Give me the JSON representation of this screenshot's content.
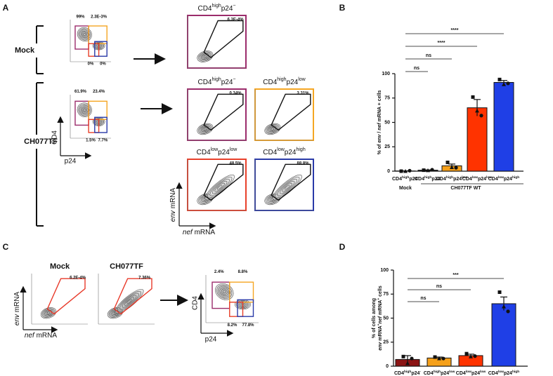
{
  "panel_labels": [
    "A",
    "B",
    "C",
    "D"
  ],
  "panel_a": {
    "rows": [
      "Mock",
      "CH077TF"
    ],
    "mock_plot": {
      "gates": [
        "99%",
        "2.3E-3%",
        "0%",
        "0%"
      ]
    },
    "mock_sorted": {
      "title": [
        "CD4",
        "high",
        "p24",
        "−"
      ],
      "gate": "6.3E-4%"
    },
    "ch_plot": {
      "gates": [
        "61.9%",
        "23.4%",
        "1.5%",
        "7.7%"
      ],
      "y_label": "CD4",
      "x_label": "p24"
    },
    "ch_sorted": [
      {
        "title": [
          "CD4",
          "high",
          "p24",
          "−"
        ],
        "gate": "0.34%"
      },
      {
        "title": [
          "CD4",
          "high",
          "p24",
          "low"
        ],
        "gate": "3.31%"
      },
      {
        "title": [
          "CD4",
          "low",
          "p24",
          "low"
        ],
        "gate": "48.5%"
      },
      {
        "title": [
          "CD4",
          "low",
          "p24",
          "high"
        ],
        "gate": "88.8%"
      }
    ],
    "y_label": [
      "env",
      " mRNA"
    ],
    "x_label": [
      "nef",
      " mRNA"
    ]
  },
  "panel_c": {
    "plots": [
      {
        "title": "Mock",
        "gate": "6.2E-4%"
      },
      {
        "title": "CH077TF",
        "gate": "7.36%"
      }
    ],
    "y_label": [
      "env",
      " mRNA"
    ],
    "x_label": [
      "nef",
      " mRNA"
    ],
    "sorted": {
      "gates": [
        "2.4%",
        "8.8%",
        "8.2%",
        "77.8%"
      ],
      "y_label": "CD4",
      "x_label": "p24"
    }
  },
  "chart_data": [
    {
      "type": "bar",
      "y_label": [
        [
          "% of ",
          "env",
          " / ",
          "nef",
          " mRNA + cells"
        ]
      ],
      "categories": [
        [
          "CD4",
          "high",
          "p24",
          "-"
        ],
        [
          "CD4",
          "high",
          "p24",
          "-"
        ],
        [
          "CD4",
          "high",
          "p24",
          "low"
        ],
        [
          "CD4",
          "low",
          "p24",
          "low"
        ],
        [
          "CD4",
          "low",
          "p24",
          "high"
        ]
      ],
      "values": [
        0.2,
        1,
        5.5,
        65,
        91
      ],
      "errors": [
        0.1,
        0.3,
        1.8,
        8.5,
        2
      ],
      "points": [
        [
          0,
          0,
          0.5
        ],
        [
          1,
          0.8,
          1.5
        ],
        [
          9,
          4,
          3.5
        ],
        [
          76,
          62,
          57
        ],
        [
          94,
          89,
          90
        ]
      ],
      "colors": [
        "#222222",
        "#222222",
        "#f5a01a",
        "#ff3300",
        "#1f3fe6"
      ],
      "groups": [
        "Mock",
        "CH077TF WT"
      ],
      "significance": [
        "ns",
        "ns",
        "****",
        "****"
      ],
      "ylim": [
        0,
        100
      ],
      "yticks": [
        0,
        25,
        50,
        75,
        100
      ]
    },
    {
      "type": "bar",
      "y_label": [
        [
          "% of cells among"
        ],
        [
          "env",
          " mRNA",
          "+",
          "nef",
          " mRNA",
          "+",
          " cells"
        ]
      ],
      "categories": [
        [
          "CD4",
          "high",
          "p24",
          "-"
        ],
        [
          "CD4",
          "high",
          "p24",
          "low"
        ],
        [
          "CD4",
          "low",
          "p24",
          "low"
        ],
        [
          "CD4",
          "low",
          "p24",
          "high"
        ]
      ],
      "values": [
        7,
        8.5,
        11,
        65
      ],
      "errors": [
        4,
        1,
        1.5,
        7
      ],
      "points": [
        [
          10,
          3,
          8
        ],
        [
          9.5,
          8,
          8
        ],
        [
          13,
          10,
          10.5
        ],
        [
          77,
          62,
          57
        ]
      ],
      "colors": [
        "#8b1414",
        "#f5a01a",
        "#ff3300",
        "#1f3fe6"
      ],
      "significance": [
        "ns",
        "ns",
        "***"
      ],
      "ylim": [
        0,
        100
      ],
      "yticks": [
        0,
        25,
        50,
        75,
        100
      ]
    }
  ]
}
